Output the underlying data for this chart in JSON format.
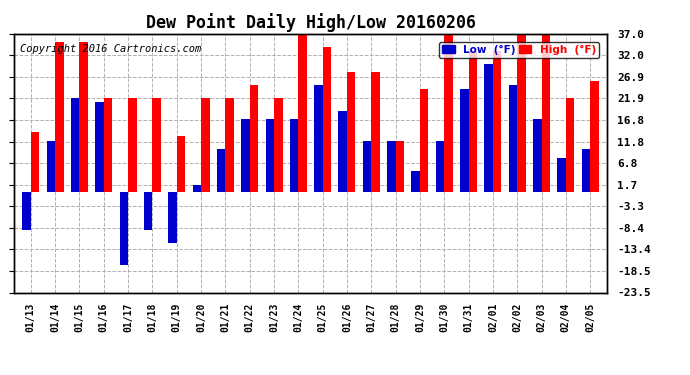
{
  "title": "Dew Point Daily High/Low 20160206",
  "copyright": "Copyright 2016 Cartronics.com",
  "dates": [
    "01/13",
    "01/14",
    "01/15",
    "01/16",
    "01/17",
    "01/18",
    "01/19",
    "01/20",
    "01/21",
    "01/22",
    "01/23",
    "01/24",
    "01/25",
    "01/26",
    "01/27",
    "01/28",
    "01/29",
    "01/30",
    "01/31",
    "02/01",
    "02/02",
    "02/03",
    "02/04",
    "02/05"
  ],
  "high": [
    14.0,
    35.0,
    35.0,
    22.0,
    22.0,
    22.0,
    13.0,
    22.0,
    22.0,
    25.0,
    22.0,
    37.0,
    34.0,
    28.0,
    28.0,
    12.0,
    24.0,
    37.0,
    33.0,
    33.0,
    37.0,
    37.0,
    22.0,
    26.0
  ],
  "low": [
    -9.0,
    12.0,
    22.0,
    21.0,
    -17.0,
    -9.0,
    -12.0,
    1.7,
    10.0,
    17.0,
    17.0,
    17.0,
    25.0,
    19.0,
    12.0,
    12.0,
    5.0,
    12.0,
    24.0,
    30.0,
    25.0,
    17.0,
    8.0,
    10.0
  ],
  "ylim": [
    -23.5,
    37.0
  ],
  "yticks": [
    37.0,
    32.0,
    26.9,
    21.9,
    16.8,
    11.8,
    6.8,
    1.7,
    -3.3,
    -8.4,
    -13.4,
    -18.5,
    -23.5
  ],
  "bar_width": 0.35,
  "high_color": "#ff0000",
  "low_color": "#0000cc",
  "bg_color": "#ffffff",
  "grid_color": "#b0b0b0",
  "title_fontsize": 12,
  "copyright_fontsize": 7.5,
  "legend_low_label": "Low  (°F)",
  "legend_high_label": "High  (°F)"
}
